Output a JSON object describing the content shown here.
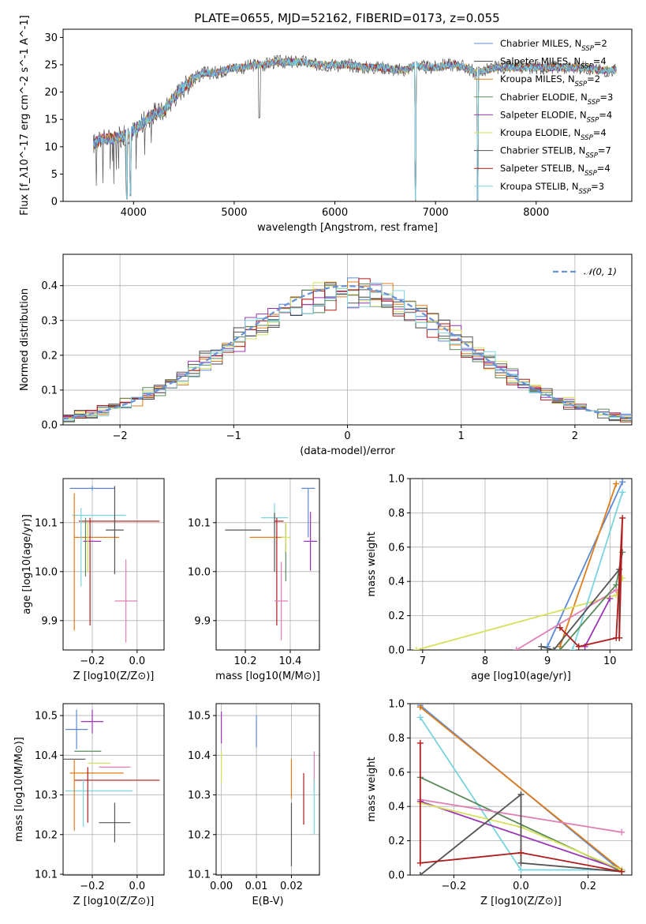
{
  "title": "PLATE=0655, MJD=52162, FIBERID=0173, z=0.055",
  "colors": {
    "chabrier_miles": "#5b8bd6",
    "salpeter_miles": "#444444",
    "kroupa_miles": "#e07c1a",
    "chabrier_elodie": "#5a8a5a",
    "salpeter_elodie": "#9b35b5",
    "kroupa_elodie": "#d6e05a",
    "chabrier_stelib": "#555555",
    "salpeter_stelib": "#b01b1b",
    "kroupa_stelib": "#7ad4de",
    "pink": "#e07fb5",
    "normal_curve": "#6a93d8"
  },
  "chart_data": [
    {
      "id": "spectrum",
      "type": "line",
      "xlabel": "wavelength [Angstrom, rest frame]",
      "ylabel": "Flux [f_λ10^-17 erg cm^-2 s^-1 A^-1]",
      "xlim": [
        3300,
        8950
      ],
      "ylim": [
        0,
        31.5
      ],
      "xticks": [
        4000,
        5000,
        6000,
        7000,
        8000
      ],
      "yticks": [
        0,
        5,
        10,
        15,
        20,
        25,
        30
      ],
      "legend_position": "top-right",
      "legend": [
        "Chabrier MILES, N_SSP=2",
        "Salpeter MILES, N_SSP=4",
        "Kroupa MILES, N_SSP=2",
        "Chabrier ELODIE, N_SSP=3",
        "Salpeter ELODIE, N_SSP=4",
        "Kroupa ELODIE, N_SSP=4",
        "Chabrier STELIB, N_SSP=7",
        "Salpeter STELIB, N_SSP=4",
        "Kroupa STELIB, N_SSP=3"
      ],
      "continuum": {
        "x": [
          3600,
          3700,
          3800,
          3900,
          4000,
          4100,
          4200,
          4300,
          4400,
          4500,
          4600,
          4700,
          4800,
          4900,
          5000,
          5100,
          5200,
          5300,
          5400,
          5500,
          5600,
          5700,
          5800,
          5900,
          6000,
          6100,
          6200,
          6300,
          6400,
          6500,
          6600,
          6700,
          6800,
          6900,
          7000,
          7100,
          7200,
          7300,
          7400,
          7500,
          7600,
          7700,
          7800,
          7900,
          8000,
          8100,
          8200,
          8300,
          8400,
          8500,
          8600,
          8700,
          8800
        ],
        "y": [
          10.5,
          11.5,
          11.5,
          12.0,
          13.0,
          14.5,
          16.0,
          16.5,
          19.0,
          21.0,
          22.5,
          23.5,
          23.5,
          24.0,
          24.5,
          24.5,
          25.0,
          25.0,
          25.5,
          25.5,
          25.5,
          25.5,
          25.0,
          25.0,
          25.0,
          25.0,
          24.8,
          24.5,
          24.5,
          24.5,
          24.0,
          24.0,
          25.0,
          24.5,
          24.5,
          25.0,
          25.0,
          24.5,
          23.5,
          24.0,
          24.5,
          24.5,
          24.5,
          24.5,
          24.5,
          24.5,
          24.5,
          24.5,
          24.5,
          24.5,
          24.0,
          24.0,
          24.0
        ]
      },
      "absorption_dips": [
        {
          "x": 3934,
          "y": 0.3
        },
        {
          "x": 3969,
          "y": 1.0
        },
        {
          "x": 5250,
          "y": 15.0
        },
        {
          "x": 6800,
          "y": 0.0
        },
        {
          "x": 7420,
          "y": 0.0
        }
      ]
    },
    {
      "id": "residuals",
      "type": "line",
      "xlabel": "(data-model)/error",
      "ylabel": "Normed distribution",
      "xlim": [
        -2.5,
        2.5
      ],
      "ylim": [
        0,
        0.49
      ],
      "xticks": [
        -2,
        -1,
        0,
        1,
        2
      ],
      "xtick_labels": [
        "−2",
        "−1",
        "0",
        "1",
        "2"
      ],
      "yticks": [
        0,
        0.1,
        0.2,
        0.3,
        0.4
      ],
      "ytick_labels": [
        "0.0",
        "0.1",
        "0.2",
        "0.3",
        "0.4"
      ],
      "grid": true,
      "bin_width": 0.1,
      "legend": [
        "𝒩(0, 1)"
      ],
      "legend_position": "top-right"
    },
    {
      "id": "age_vs_Z",
      "type": "scatter",
      "xlabel": "Z [log10(Z/Z⊙)]",
      "ylabel": "age  [log10(age/yr)]",
      "xlim": [
        -0.33,
        0.12
      ],
      "ylim": [
        9.84,
        10.19
      ],
      "xticks": [
        -0.2,
        0.0
      ],
      "xtick_labels": [
        "−0.2",
        "0.0"
      ],
      "yticks": [
        9.9,
        10.0,
        10.1
      ],
      "yticks_labels": [
        "9.9",
        "10.0",
        "10.1"
      ],
      "points": [
        {
          "series": "chabrier_miles",
          "x": -0.2,
          "xerr": 0.1,
          "y": 10.17,
          "yerr": 0.0
        },
        {
          "series": "kroupa_stelib",
          "x": -0.17,
          "xerr": 0.12,
          "y": 10.115,
          "yerr": 0.0
        },
        {
          "series": "salpeter_stelib",
          "x": -0.08,
          "xerr": 0.18,
          "y": 10.103,
          "yerr": 0.0
        },
        {
          "series": "kroupa_miles",
          "x": -0.18,
          "xerr": 0.1,
          "y": 10.07,
          "yerr": 0.0
        },
        {
          "series": "chabrier_stelib",
          "x": -0.1,
          "xerr": 0.04,
          "y": 10.085,
          "yerr": 0.08
        },
        {
          "series": "salpeter_elodie",
          "x": -0.2,
          "xerr": 0.04,
          "y": 10.062,
          "yerr": 0.0
        },
        {
          "series": "pink",
          "x": -0.05,
          "xerr": 0.05,
          "y": 9.94,
          "yerr": 0.08
        }
      ]
    },
    {
      "id": "age_vs_mass",
      "type": "scatter",
      "xlabel": "mass [log10(M/M⊙)]",
      "ylabel": "",
      "xlim": [
        10.07,
        10.53
      ],
      "ylim": [
        9.84,
        10.19
      ],
      "xticks": [
        10.2,
        10.4
      ],
      "xtick_labels": [
        "10.2",
        "10.4"
      ],
      "yticks": [
        9.9,
        10.0,
        10.1
      ],
      "yticks_labels": [
        "9.9",
        "10.0",
        "10.1"
      ]
    },
    {
      "id": "weight_vs_age",
      "type": "line",
      "xlabel": "age  [log10(age/yr)]",
      "ylabel": "mass weight",
      "xlim": [
        6.8,
        10.35
      ],
      "ylim": [
        0,
        1.0
      ],
      "xticks": [
        7,
        8,
        9,
        10
      ],
      "xtick_labels": [
        "7",
        "8",
        "9",
        "10"
      ],
      "yticks": [
        0,
        0.2,
        0.4,
        0.6,
        0.8,
        1.0
      ],
      "ytick_labels": [
        "0.0",
        "0.2",
        "0.4",
        "0.6",
        "0.8",
        "1.0"
      ],
      "grid": true,
      "series": [
        {
          "color": "chabrier_miles",
          "x": [
            9.0,
            10.2
          ],
          "y": [
            0.02,
            0.98
          ]
        },
        {
          "color": "kroupa_miles",
          "x": [
            9.2,
            10.1
          ],
          "y": [
            0.02,
            0.97
          ]
        },
        {
          "color": "kroupa_elodie",
          "x": [
            6.9,
            10.1,
            10.2
          ],
          "y": [
            0.0,
            0.32,
            0.42
          ]
        },
        {
          "color": "kroupa_stelib",
          "x": [
            9.4,
            10.2
          ],
          "y": [
            0.0,
            0.92
          ]
        },
        {
          "color": "pink",
          "x": [
            8.5,
            10.1
          ],
          "y": [
            0.0,
            0.35
          ]
        },
        {
          "color": "chabrier_elodie",
          "x": [
            9.2,
            10.1,
            10.2
          ],
          "y": [
            0.0,
            0.38,
            0.57
          ]
        },
        {
          "color": "salpeter_elodie",
          "x": [
            9.6,
            10.0
          ],
          "y": [
            0.02,
            0.3
          ]
        },
        {
          "color": "chabrier_stelib",
          "x": [
            8.9,
            9.1,
            10.15,
            10.15
          ],
          "y": [
            0.02,
            0.0,
            0.47,
            0.07
          ]
        },
        {
          "color": "salpeter_stelib",
          "x": [
            9.2,
            9.5,
            10.1,
            10.2,
            10.15
          ],
          "y": [
            0.13,
            0.02,
            0.07,
            0.77,
            0.07
          ]
        }
      ]
    },
    {
      "id": "mass_vs_Z",
      "type": "scatter",
      "xlabel": "Z [log10(Z/Z⊙)]",
      "ylabel": "mass [log10(M/M⊙)]",
      "xlim": [
        -0.33,
        0.12
      ],
      "ylim": [
        10.098,
        10.53
      ],
      "xticks": [
        -0.2,
        0.0
      ],
      "xtick_labels": [
        "−0.2",
        "0.0"
      ],
      "yticks": [
        10.1,
        10.2,
        10.3,
        10.4,
        10.5
      ],
      "yticks_labels": [
        "10.1",
        "10.2",
        "10.3",
        "10.4",
        "10.5"
      ]
    },
    {
      "id": "mass_vs_ebv",
      "type": "scatter",
      "xlabel": "E(B-V)",
      "ylabel": "",
      "xlim": [
        -0.0015,
        0.028
      ],
      "ylim": [
        10.098,
        10.53
      ],
      "xticks": [
        0.0,
        0.01,
        0.02
      ],
      "xtick_labels": [
        "0.00",
        "0.01",
        "0.02"
      ],
      "yticks": [
        10.1,
        10.2,
        10.3,
        10.4,
        10.5
      ],
      "yticks_labels": [
        "10.1",
        "10.2",
        "10.3",
        "10.4",
        "10.5"
      ]
    },
    {
      "id": "weight_vs_Z",
      "type": "line",
      "xlabel": "Z [log10(Z/Z⊙)]",
      "ylabel": "mass weight",
      "xlim": [
        -0.33,
        0.33
      ],
      "ylim": [
        0,
        1.0
      ],
      "xticks": [
        -0.2,
        0.0,
        0.2
      ],
      "xtick_labels": [
        "−0.2",
        "0.0",
        "0.2"
      ],
      "yticks": [
        0,
        0.2,
        0.4,
        0.6,
        0.8,
        1.0
      ],
      "ytick_labels": [
        "0.0",
        "0.2",
        "0.4",
        "0.6",
        "0.8",
        "1.0"
      ],
      "grid": true,
      "series": [
        {
          "color": "chabrier_miles",
          "x": [
            -0.3,
            0.3
          ],
          "y": [
            0.99,
            0.02
          ]
        },
        {
          "color": "kroupa_miles",
          "x": [
            -0.3,
            0.3
          ],
          "y": [
            0.98,
            0.03
          ]
        },
        {
          "color": "kroupa_stelib",
          "x": [
            -0.3,
            0.0,
            0.3
          ],
          "y": [
            0.92,
            0.03,
            0.03
          ]
        },
        {
          "color": "chabrier_elodie",
          "x": [
            -0.3,
            0.3
          ],
          "y": [
            0.57,
            0.02
          ]
        },
        {
          "color": "salpeter_elodie",
          "x": [
            -0.3,
            0.3
          ],
          "y": [
            0.43,
            0.03
          ]
        },
        {
          "color": "kroupa_elodie",
          "x": [
            -0.3,
            0.0,
            0.3
          ],
          "y": [
            0.42,
            0.28,
            0.03
          ]
        },
        {
          "color": "pink",
          "x": [
            -0.3,
            0.3
          ],
          "y": [
            0.44,
            0.25
          ]
        },
        {
          "color": "chabrier_stelib",
          "x": [
            -0.3,
            0.0,
            0.0,
            0.3
          ],
          "y": [
            0.0,
            0.47,
            0.07,
            0.02
          ]
        },
        {
          "color": "salpeter_stelib",
          "x": [
            -0.3,
            -0.3,
            0.0,
            0.3
          ],
          "y": [
            0.77,
            0.07,
            0.13,
            0.02
          ]
        }
      ]
    }
  ]
}
